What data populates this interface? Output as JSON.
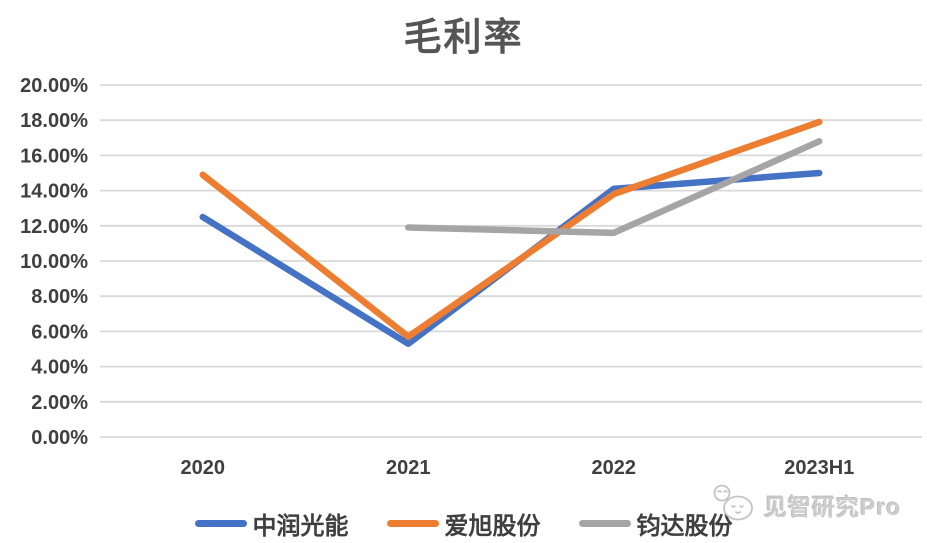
{
  "chart_data": {
    "type": "line",
    "title": "毛利率",
    "categories": [
      "2020",
      "2021",
      "2022",
      "2023H1"
    ],
    "series": [
      {
        "name": "中润光能",
        "color": "#4472C4",
        "values": [
          12.5,
          5.3,
          14.1,
          15.0
        ]
      },
      {
        "name": "爱旭股份",
        "color": "#ED7D31",
        "values": [
          14.9,
          5.7,
          13.8,
          17.9
        ]
      },
      {
        "name": "钧达股份",
        "color": "#A5A5A5",
        "values": [
          null,
          11.9,
          11.6,
          16.8
        ]
      }
    ],
    "ylim": [
      0,
      20
    ],
    "ytick_step": 2,
    "ytick_labels": [
      "0.00%",
      "2.00%",
      "4.00%",
      "6.00%",
      "8.00%",
      "10.00%",
      "12.00%",
      "14.00%",
      "16.00%",
      "18.00%",
      "20.00%"
    ],
    "grid": true,
    "legend_position": "bottom"
  },
  "watermark": {
    "logo_icon": "jianzhi-mascot-icon",
    "text": "见智研究Pro"
  },
  "colors": {
    "series_blue": "#4472C4",
    "series_orange": "#ED7D31",
    "series_gray": "#A5A5A5",
    "gridline": "#D9D9D9",
    "title_text": "#555555",
    "axis_text": "#3F3F3F",
    "legend_text": "#3F3F3F",
    "watermark_text": "#CCCCCC",
    "watermark_stroke": "#C4C4C4"
  }
}
